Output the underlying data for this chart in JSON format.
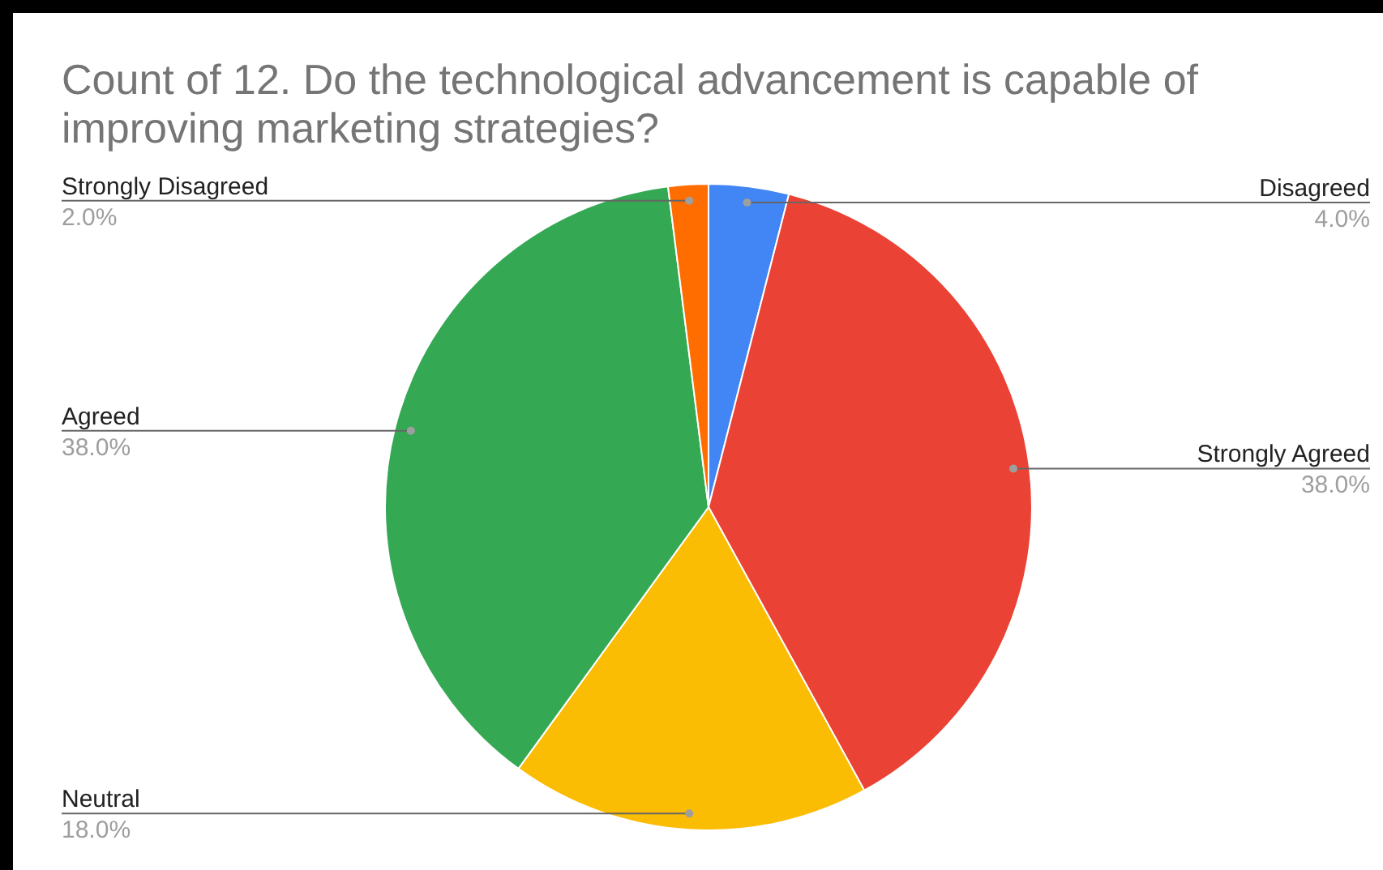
{
  "chart_data": {
    "type": "pie",
    "title": "Count of 12. Do the technological advancement is capable of improving marketing strategies?",
    "categories": [
      "Disagreed",
      "Strongly Agreed",
      "Neutral",
      "Agreed",
      "Strongly Disagreed"
    ],
    "values": [
      4,
      38,
      18,
      38,
      2
    ],
    "colors": [
      "#4285f4",
      "#ea4335",
      "#fbbc04",
      "#34a853",
      "#ff6d01"
    ],
    "value_labels": [
      "4.0%",
      "38.0%",
      "18.0%",
      "38.0%",
      "2.0%"
    ],
    "legend": false
  }
}
